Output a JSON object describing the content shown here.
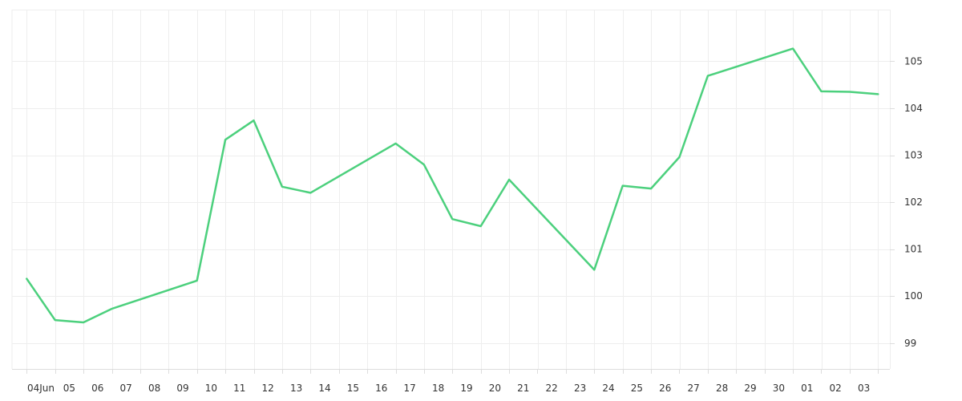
{
  "chart_data": {
    "type": "line",
    "x_axis_labels": [
      "04Jun",
      "05",
      "06",
      "07",
      "08",
      "09",
      "10",
      "11",
      "12",
      "13",
      "14",
      "15",
      "16",
      "17",
      "18",
      "19",
      "20",
      "21",
      "22",
      "23",
      "24",
      "25",
      "26",
      "27",
      "28",
      "29",
      "30",
      "01",
      "02",
      "03"
    ],
    "y_ticks": [
      99,
      100,
      101,
      102,
      103,
      104,
      105
    ],
    "ylim": [
      98.45,
      106.1
    ],
    "grid": true,
    "line_color": "#4cd07d",
    "grid_color": "#eeeeee",
    "series": [
      {
        "x": [
          "2024-06-03",
          "2024-06-04",
          "2024-06-05",
          "2024-06-06",
          "2024-06-09",
          "2024-06-10",
          "2024-06-11",
          "2024-06-12",
          "2024-06-13",
          "2024-06-16",
          "2024-06-17",
          "2024-06-18",
          "2024-06-19",
          "2024-06-20",
          "2024-06-23",
          "2024-06-24",
          "2024-06-25",
          "2024-06-26",
          "2024-06-27",
          "2024-06-30",
          "2024-07-01",
          "2024-07-02",
          "2024-07-03"
        ],
        "values": [
          100.37,
          99.49,
          99.44,
          99.73,
          100.33,
          103.33,
          103.74,
          102.33,
          102.2,
          103.25,
          102.8,
          101.64,
          101.49,
          102.48,
          100.56,
          102.35,
          102.29,
          102.96,
          104.69,
          105.27,
          104.36,
          104.35,
          104.3
        ]
      }
    ]
  }
}
